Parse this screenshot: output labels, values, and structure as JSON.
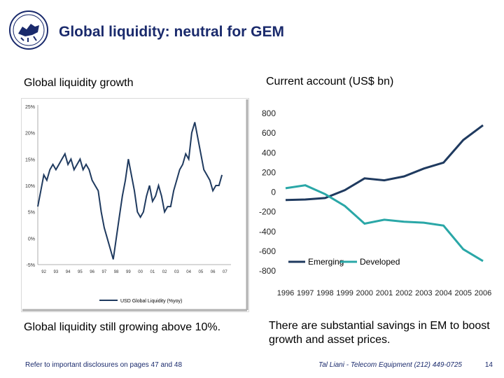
{
  "slide": {
    "title": "Global liquidity: neutral for GEM",
    "footer_left": "Refer to important disclosures on pages 47 and 48",
    "footer_right": "Tal Liani - Telecom Equipment (212) 449-0725",
    "page_number": "14"
  },
  "left_panel": {
    "subtitle": "Global liquidity growth",
    "caption": "Global liquidity still growing above 10%."
  },
  "right_panel": {
    "subtitle": "Current account (US$ bn)",
    "caption": "There are substantial savings in EM to boost growth and asset prices."
  },
  "colors": {
    "title": "#1a2a6c",
    "liquidity": "#1f3a5f",
    "emerging": "#1f3a5f",
    "developed": "#2aa7a7"
  },
  "chart_data": [
    {
      "type": "line",
      "title": "Global liquidity growth",
      "ylim": [
        -5,
        25
      ],
      "yticks": [
        "25%",
        "20%",
        "15%",
        "10%",
        "5%",
        "0%",
        "-5%"
      ],
      "ytick_values": [
        25,
        20,
        15,
        10,
        5,
        0,
        -5
      ],
      "xticks": [
        "92",
        "93",
        "94",
        "95",
        "96",
        "97",
        "98",
        "99",
        "00",
        "01",
        "02",
        "03",
        "04",
        "05",
        "06",
        "07"
      ],
      "legend": "USD Global Liquidity  (%yoy)",
      "series": [
        {
          "name": "USD Global Liquidity  (%yoy)",
          "x_start": 1992.0,
          "x_step": 0.25,
          "values": [
            6,
            9,
            12,
            11,
            13,
            14,
            13,
            14,
            15,
            16,
            14,
            15,
            13,
            14,
            15,
            13,
            14,
            13,
            11,
            10,
            9,
            5,
            2,
            0,
            -2,
            -4,
            0,
            4,
            8,
            11,
            15,
            12,
            9,
            5,
            4,
            5,
            8,
            10,
            7,
            8,
            10,
            8,
            5,
            6,
            6,
            9,
            11,
            13,
            14,
            16,
            15,
            20,
            22,
            19,
            16,
            13,
            12,
            11,
            9,
            10,
            10,
            12
          ]
        }
      ]
    },
    {
      "type": "line",
      "title": "Current account (US$ bn)",
      "categories": [
        "1996",
        "1997",
        "1998",
        "1999",
        "2000",
        "2001",
        "2002",
        "2003",
        "2004",
        "2005",
        "2006"
      ],
      "ylim": [
        -800,
        800
      ],
      "yticks": [
        "800",
        "600",
        "400",
        "200",
        "0",
        "-200",
        "-400",
        "-600",
        "-800"
      ],
      "ytick_values": [
        800,
        600,
        400,
        200,
        0,
        -200,
        -400,
        -600,
        -800
      ],
      "series": [
        {
          "name": "Emerging",
          "values": [
            -80,
            -75,
            -60,
            20,
            140,
            120,
            160,
            240,
            300,
            530,
            680
          ]
        },
        {
          "name": "Developed",
          "values": [
            40,
            70,
            -20,
            -140,
            -320,
            -280,
            -300,
            -310,
            -340,
            -580,
            -700
          ]
        }
      ]
    }
  ]
}
